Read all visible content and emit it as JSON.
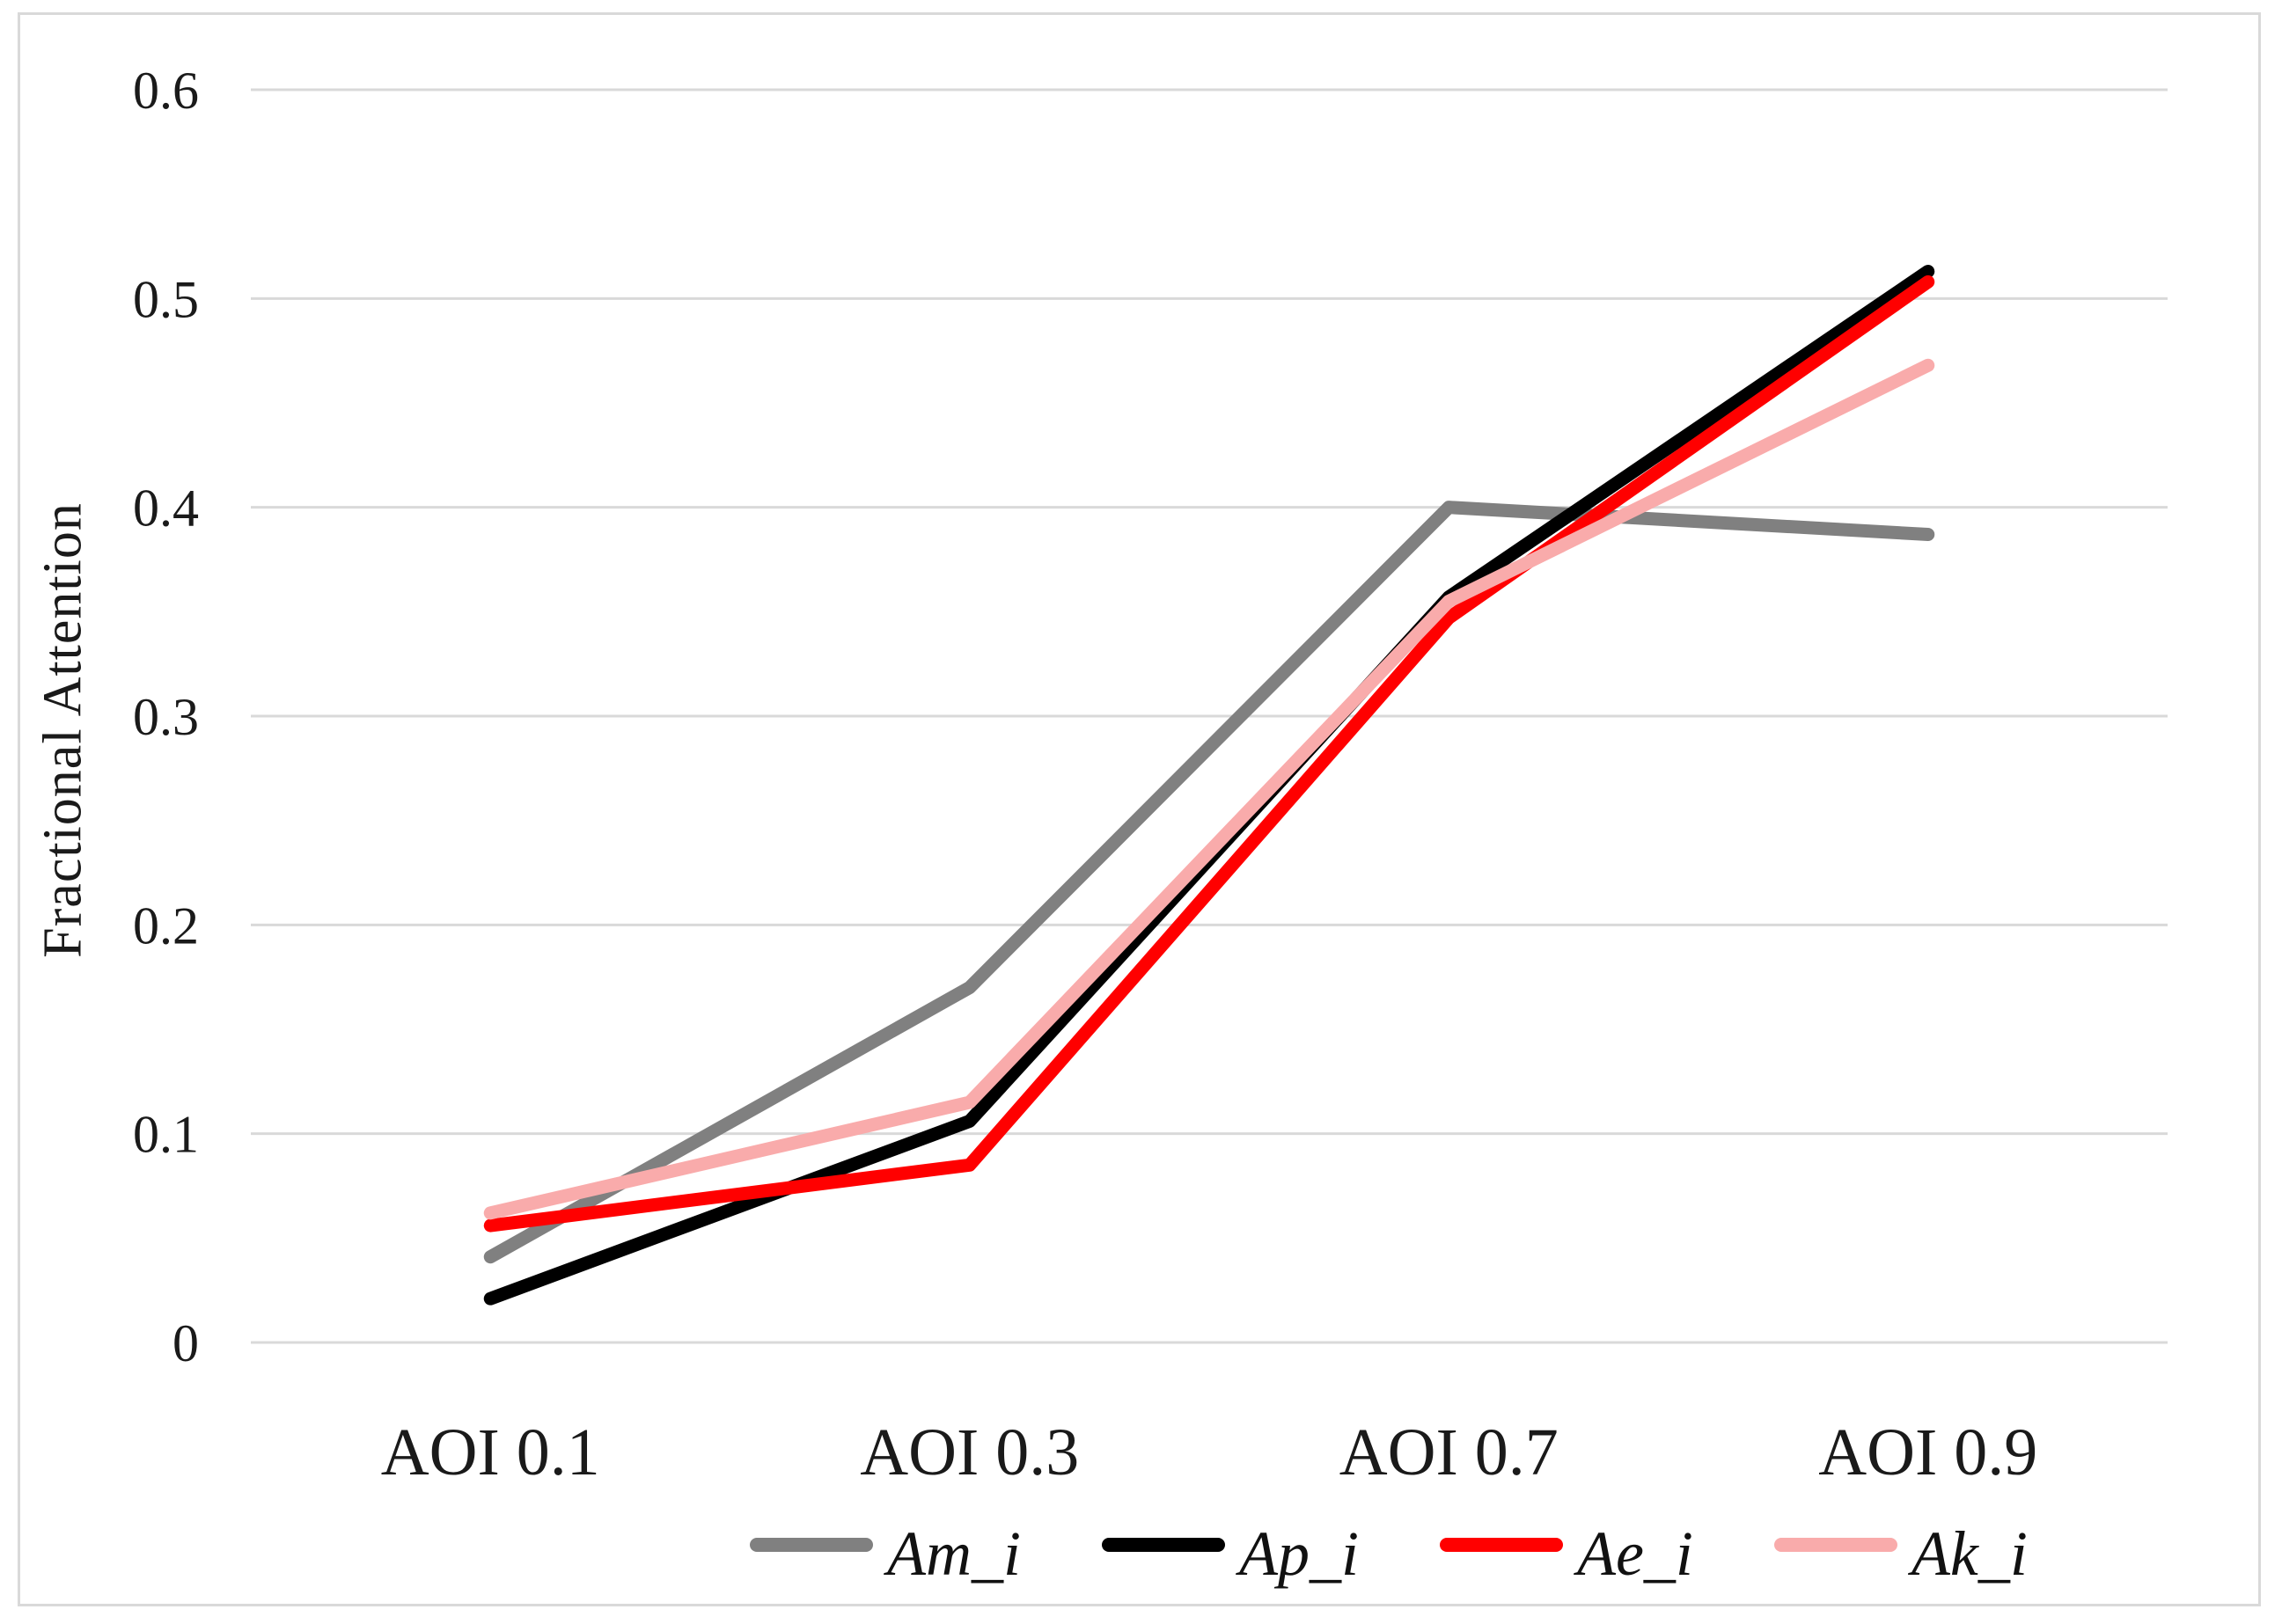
{
  "figure": {
    "ylabel": "Fractional Attention",
    "legend_items": [
      {
        "label": "Am_i",
        "color": "#808080"
      },
      {
        "label": "Ap_i",
        "color": "#000000"
      },
      {
        "label": "Ae_i",
        "color": "#FF0000"
      },
      {
        "label": "Ak_i",
        "color": "#F9ABAB"
      }
    ]
  },
  "chart_data": {
    "type": "line",
    "title": "",
    "xlabel": "",
    "ylabel": "Fractional Attention",
    "categories": [
      "AOI 0.1",
      "AOI 0.3",
      "AOI 0.7",
      "AOI 0.9"
    ],
    "series": [
      {
        "name": "Am_i",
        "color": "#808080",
        "values": [
          0.041,
          0.17,
          0.4,
          0.387
        ]
      },
      {
        "name": "Ap_i",
        "color": "#000000",
        "values": [
          0.021,
          0.106,
          0.357,
          0.513
        ]
      },
      {
        "name": "Ae_i",
        "color": "#FF0000",
        "values": [
          0.056,
          0.085,
          0.347,
          0.508
        ]
      },
      {
        "name": "Ak_i",
        "color": "#F9ABAB",
        "values": [
          0.062,
          0.115,
          0.355,
          0.468
        ]
      }
    ],
    "ylim": [
      0,
      0.6
    ],
    "yticks": [
      "0",
      "0.1",
      "0.2",
      "0.3",
      "0.4",
      "0.5",
      "0.6"
    ],
    "grid": true,
    "gridline_color": "#D9D9D9",
    "frame_color": "#D9D9D9",
    "legend_position": "bottom"
  }
}
